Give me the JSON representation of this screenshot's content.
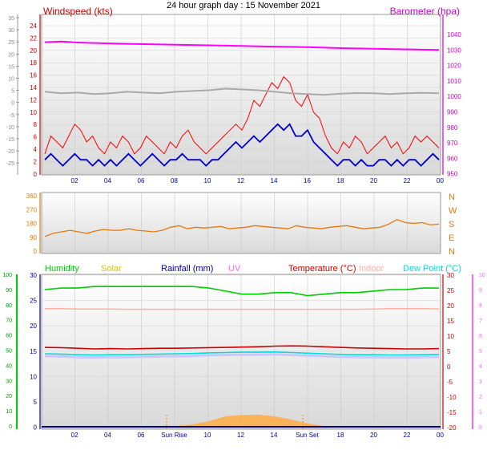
{
  "title": "24 hour graph day : 15 November 2021",
  "colors": {
    "wind": "#ff0000",
    "gust": "#ff0000",
    "avg": "#0000cc",
    "baro": "#ff00ff",
    "baro_axis": "#cc00cc",
    "grey": "#a9a9a9",
    "dir": "#e07a10",
    "hum": "#00cc00",
    "solar": "#cccc00",
    "rain": "#000099",
    "uv": "#ff66ff",
    "temp": "#cc0000",
    "indoor": "#ffb0a0",
    "dew": "#00dddd",
    "dewdot": "#c8c8ff",
    "sun": "#ffaa44"
  },
  "chart_data": [
    {
      "type": "line",
      "labels": {
        "left": "Windspeed (kts)",
        "right": "Barometer (hpa)"
      },
      "x_ticks": [
        "02",
        "04",
        "06",
        "08",
        "10",
        "12",
        "14",
        "16",
        "18",
        "20",
        "22",
        "00"
      ],
      "left_ticks": [
        "24",
        "22",
        "20",
        "18",
        "16",
        "14",
        "12",
        "10",
        "8",
        "6",
        "4",
        "2",
        "0"
      ],
      "right_ticks": [
        "1040",
        "1030",
        "1020",
        "1010",
        "1000",
        "990",
        "980",
        "970",
        "960",
        "950"
      ],
      "outer_ticks": [
        "35",
        "30",
        "25",
        "20",
        "15",
        "10",
        "5",
        "0",
        "-5",
        "-10",
        "-15",
        "-20",
        "-25"
      ],
      "ylim_wind": [
        0,
        25
      ],
      "ylim_baro": [
        948,
        1046
      ],
      "series": {
        "gust": [
          3,
          6,
          5,
          4,
          6,
          8,
          7,
          5,
          6,
          4,
          3,
          5,
          4,
          6,
          5,
          3,
          4,
          6,
          5,
          4,
          3,
          5,
          4,
          6,
          7,
          5,
          4,
          3,
          4,
          5,
          6,
          7,
          8,
          7,
          9,
          12,
          11,
          13,
          15,
          14,
          16,
          15,
          12,
          11,
          13,
          10,
          9,
          6,
          4,
          3,
          5,
          4,
          6,
          5,
          3,
          4,
          5,
          6,
          4,
          5,
          3,
          4,
          6,
          5,
          6,
          5,
          4
        ],
        "speed": [
          2,
          3,
          2,
          1,
          2,
          3,
          2,
          2,
          1,
          2,
          1,
          2,
          1,
          2,
          3,
          2,
          1,
          2,
          3,
          2,
          1,
          2,
          2,
          3,
          2,
          2,
          2,
          1,
          2,
          2,
          3,
          4,
          5,
          4,
          5,
          6,
          5,
          6,
          7,
          8,
          7,
          8,
          6,
          6,
          7,
          5,
          4,
          3,
          2,
          1,
          2,
          2,
          1,
          2,
          1,
          1,
          2,
          2,
          1,
          2,
          1,
          2,
          2,
          1,
          2,
          3,
          2
        ],
        "baro": [
          1035,
          1035.5,
          1034.8,
          1034.5,
          1034.2,
          1034,
          1033.8,
          1033.6,
          1033.4,
          1033.2,
          1033,
          1032.8,
          1032.6,
          1032.4,
          1032.2,
          1032,
          1031.8,
          1031.5,
          1031.2,
          1031,
          1030.8,
          1030.6,
          1030.4,
          1030.2,
          1030
        ],
        "grey": [
          1003,
          1002,
          1002.5,
          1001.5,
          1002,
          1003,
          1002.5,
          1002,
          1003,
          1003.5,
          1004,
          1005,
          1004.5,
          1004,
          1003,
          1002,
          1001.5,
          1001,
          1001.8,
          1002.2,
          1002,
          1001.5,
          1002,
          1002.3,
          1002
        ]
      }
    },
    {
      "type": "line",
      "right_labels": [
        "N",
        "W",
        "S",
        "E",
        "N"
      ],
      "left_ticks": [
        "360",
        "270",
        "180",
        "90",
        "0"
      ],
      "ylim": [
        0,
        360
      ],
      "x_ticks": [
        "02",
        "04",
        "06",
        "08",
        "10",
        "12",
        "14",
        "16",
        "18",
        "20",
        "22",
        "00"
      ],
      "series": {
        "direction": [
          90,
          110,
          120,
          130,
          120,
          110,
          125,
          135,
          130,
          130,
          140,
          130,
          125,
          120,
          130,
          150,
          160,
          140,
          150,
          145,
          150,
          155,
          140,
          145,
          150,
          160,
          155,
          150,
          145,
          140,
          160,
          150,
          145,
          140,
          150,
          155,
          160,
          150,
          140,
          145,
          150,
          170,
          200,
          180,
          175,
          180,
          165,
          170
        ]
      }
    },
    {
      "type": "line",
      "legend": [
        "Humidity",
        "Solar",
        "Rainfall (mm)",
        "UV",
        "Temperature (°C)",
        "Indoor",
        "Dew Point (°C)"
      ],
      "x_ticks": [
        "02",
        "04",
        "06",
        "Sun Rise",
        "10",
        "12",
        "14",
        "Sun Set",
        "18",
        "20",
        "22",
        "00"
      ],
      "left_ticks": [
        "30",
        "25",
        "20",
        "15",
        "10",
        "5",
        "0"
      ],
      "outer_ticks": [
        "100",
        "90",
        "80",
        "70",
        "60",
        "50",
        "40",
        "30",
        "20",
        "10",
        "0"
      ],
      "right_ticks": [
        "30",
        "25",
        "20",
        "15",
        "10",
        "5",
        "0",
        "-5",
        "-10",
        "-15",
        "-20"
      ],
      "outer_right_ticks": [
        "10",
        "9",
        "8",
        "7",
        "6",
        "5",
        "4",
        "3",
        "2",
        "1",
        "0"
      ],
      "ylim_temp": [
        -20,
        30
      ],
      "series": {
        "temperature": [
          6.3,
          6.2,
          6,
          5.8,
          5.9,
          5.8,
          5.9,
          6,
          6,
          6.1,
          6.2,
          6.3,
          6.4,
          6.5,
          6.7,
          6.8,
          6.7,
          6.5,
          6.3,
          6.1,
          6,
          5.9,
          5.8,
          5.8,
          5.9
        ],
        "dew_point": [
          4.2,
          4.1,
          3.9,
          3.8,
          3.9,
          3.9,
          4,
          4.1,
          4.2,
          4.3,
          4.5,
          4.6,
          4.7,
          4.7,
          4.8,
          4.6,
          4.4,
          4.2,
          4,
          3.9,
          3.9,
          3.8,
          3.8,
          3.9,
          4
        ],
        "indoor": [
          19,
          19,
          18.9,
          18.9,
          18.9,
          18.8,
          18.8,
          18.8,
          18.8,
          18.8,
          18.8,
          18.8,
          18.8,
          18.8,
          18.8,
          18.8,
          18.8,
          18.8,
          18.8,
          18.8,
          18.9,
          19,
          19,
          19,
          18.9
        ],
        "humidity": [
          90,
          91,
          91,
          92,
          92,
          92,
          92,
          92,
          92,
          92,
          91,
          89,
          87,
          87,
          88,
          88,
          86,
          87,
          88,
          88,
          89,
          90,
          90,
          91,
          91
        ],
        "solar": [
          0,
          0,
          0,
          0,
          0,
          0,
          0,
          0,
          0,
          0.5,
          1.5,
          3,
          3.4,
          3.5,
          3,
          2,
          0.8,
          0,
          0,
          0,
          0,
          0,
          0,
          0,
          0
        ],
        "rainfall_mm": 0
      }
    }
  ]
}
